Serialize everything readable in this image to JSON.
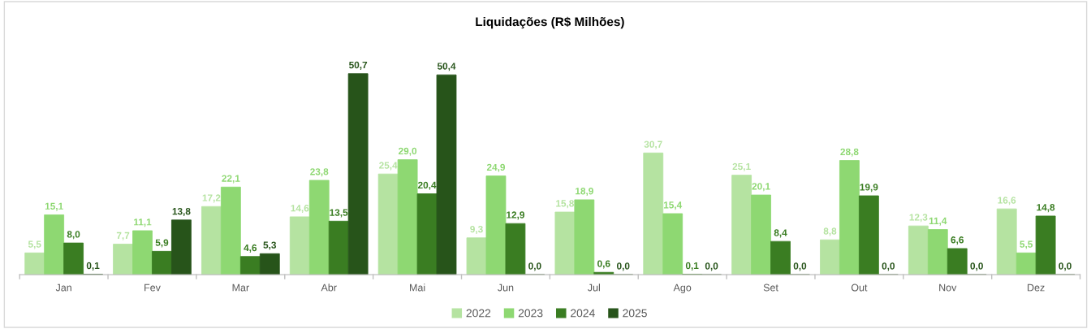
{
  "chart_data": {
    "type": "bar",
    "title": "Liquidações (R$ Milhões)",
    "categories": [
      "Jan",
      "Fev",
      "Mar",
      "Abr",
      "Mai",
      "Jun",
      "Jul",
      "Ago",
      "Set",
      "Out",
      "Nov",
      "Dez"
    ],
    "series": [
      {
        "name": "2022",
        "color": "#b5e3a1",
        "values": [
          5.5,
          7.7,
          17.2,
          14.6,
          25.4,
          9.3,
          15.8,
          30.7,
          25.1,
          8.8,
          12.3,
          16.6
        ],
        "value_labels": [
          "5,5",
          "7,7",
          "17,2",
          "14,6",
          "25,4",
          "9,3",
          "15,8",
          "30,7",
          "25,1",
          "8,8",
          "12,3",
          "16,6"
        ]
      },
      {
        "name": "2023",
        "color": "#8ed872",
        "values": [
          15.1,
          11.1,
          22.1,
          23.8,
          29.0,
          24.9,
          18.9,
          15.4,
          20.1,
          28.8,
          11.4,
          5.5
        ],
        "value_labels": [
          "15,1",
          "11,1",
          "22,1",
          "23,8",
          "29,0",
          "24,9",
          "18,9",
          "15,4",
          "20,1",
          "28,8",
          "11,4",
          "5,5"
        ]
      },
      {
        "name": "2024",
        "color": "#3a7d22",
        "values": [
          8.0,
          5.9,
          4.6,
          13.5,
          20.4,
          12.9,
          0.6,
          0.1,
          8.4,
          19.9,
          6.6,
          14.8
        ],
        "value_labels": [
          "8,0",
          "5,9",
          "4,6",
          "13,5",
          "20,4",
          "12,9",
          "0,6",
          "0,1",
          "8,4",
          "19,9",
          "6,6",
          "14,8"
        ]
      },
      {
        "name": "2025",
        "color": "#27541a",
        "values": [
          0.1,
          13.8,
          5.3,
          50.7,
          50.4,
          0.0,
          0.0,
          0.0,
          0.0,
          0.0,
          0.0,
          0.0
        ],
        "value_labels": [
          "0,1",
          "13,8",
          "5,3",
          "50,7",
          "50,4",
          "0,0",
          "0,0",
          "0,0",
          "0,0",
          "0,0",
          "0,0",
          "0,0"
        ]
      }
    ],
    "legend": "bottom",
    "grid": false
  }
}
